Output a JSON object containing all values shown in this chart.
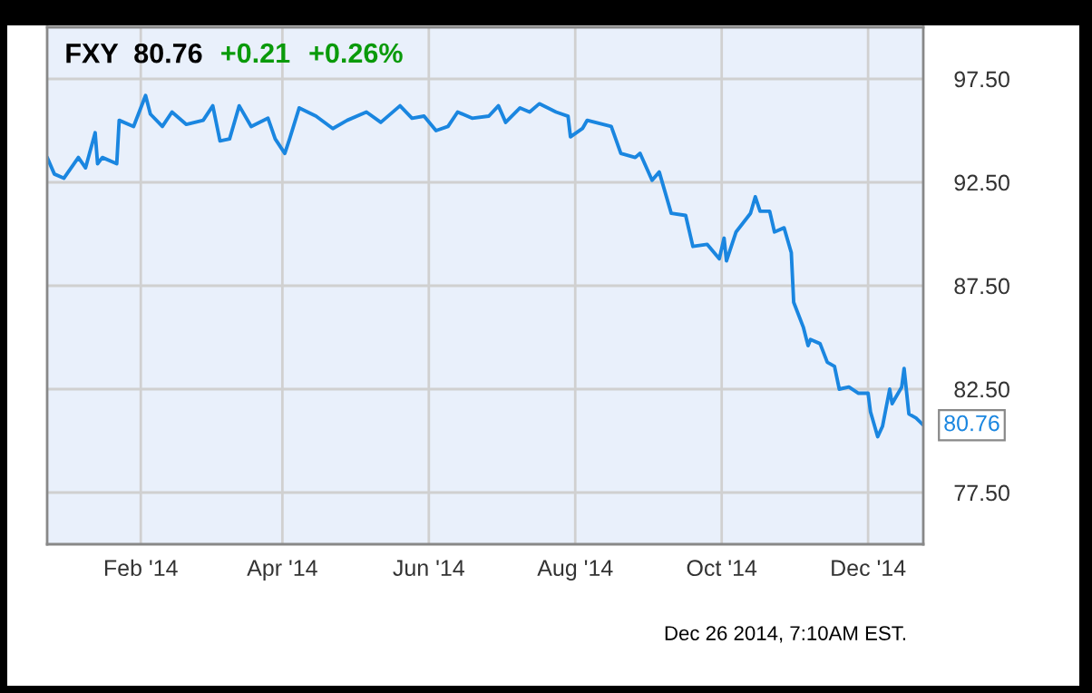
{
  "chart_data": {
    "type": "line",
    "title": "FXY  80.76",
    "annotations": [
      "+0.21",
      "+0.26%",
      "Dec 26 2014, 7:10AM EST."
    ],
    "x": [
      "2013-12-24",
      "2013-12-27",
      "2013-12-31",
      "2014-01-06",
      "2014-01-09",
      "2014-01-13",
      "2014-01-14",
      "2014-01-16",
      "2014-01-22",
      "2014-01-23",
      "2014-01-29",
      "2014-02-03",
      "2014-02-05",
      "2014-02-10",
      "2014-02-14",
      "2014-02-20",
      "2014-02-27",
      "2014-03-03",
      "2014-03-06",
      "2014-03-10",
      "2014-03-14",
      "2014-03-19",
      "2014-03-26",
      "2014-03-29",
      "2014-04-02",
      "2014-04-04",
      "2014-04-08",
      "2014-04-15",
      "2014-04-22",
      "2014-04-28",
      "2014-05-06",
      "2014-05-12",
      "2014-05-20",
      "2014-05-25",
      "2014-05-30",
      "2014-06-04",
      "2014-06-09",
      "2014-06-13",
      "2014-06-19",
      "2014-06-26",
      "2014-06-30",
      "2014-07-03",
      "2014-07-09",
      "2014-07-13",
      "2014-07-17",
      "2014-07-24",
      "2014-07-29",
      "2014-07-30",
      "2014-08-04",
      "2014-08-06",
      "2014-08-16",
      "2014-08-20",
      "2014-08-26",
      "2014-08-28",
      "2014-09-02",
      "2014-09-05",
      "2014-09-10",
      "2014-09-16",
      "2014-09-19",
      "2014-09-25",
      "2014-09-30",
      "2014-10-02",
      "2014-10-03",
      "2014-10-07",
      "2014-10-13",
      "2014-10-15",
      "2014-10-17",
      "2014-10-21",
      "2014-10-23",
      "2014-10-27",
      "2014-10-30",
      "2014-10-31",
      "2014-11-04",
      "2014-11-06",
      "2014-11-07",
      "2014-11-11",
      "2014-11-14",
      "2014-11-17",
      "2014-11-19",
      "2014-11-23",
      "2014-11-27",
      "2014-12-01",
      "2014-12-02",
      "2014-12-05",
      "2014-12-07",
      "2014-12-10",
      "2014-12-11",
      "2014-12-15",
      "2014-12-16",
      "2014-12-18",
      "2014-12-21",
      "2014-12-24"
    ],
    "series": [
      {
        "color": "#1a86e0",
        "values": [
          93.7,
          92.9,
          92.7,
          93.7,
          93.2,
          94.9,
          93.4,
          93.7,
          93.4,
          95.5,
          95.2,
          96.7,
          95.8,
          95.2,
          95.9,
          95.3,
          95.5,
          96.2,
          94.5,
          94.6,
          96.2,
          95.2,
          95.6,
          94.6,
          93.9,
          94.6,
          96.1,
          95.7,
          95.1,
          95.5,
          95.9,
          95.4,
          96.2,
          95.6,
          95.7,
          95.0,
          95.2,
          95.9,
          95.6,
          95.7,
          96.2,
          95.4,
          96.1,
          95.9,
          96.3,
          95.9,
          95.7,
          94.7,
          95.1,
          95.5,
          95.2,
          93.9,
          93.7,
          93.9,
          92.6,
          93.0,
          91.0,
          90.9,
          89.4,
          89.5,
          88.8,
          89.8,
          88.7,
          90.1,
          91.0,
          91.8,
          91.1,
          91.1,
          90.1,
          90.3,
          89.1,
          86.7,
          85.5,
          84.6,
          84.9,
          84.7,
          83.8,
          83.6,
          82.5,
          82.6,
          82.3,
          82.3,
          81.4,
          80.2,
          80.7,
          82.5,
          81.8,
          82.6,
          83.5,
          81.3,
          81.1,
          80.76
        ],
        "value_labels": [
          null,
          null,
          null,
          null,
          null,
          null,
          null,
          null,
          null,
          null,
          null,
          null,
          null,
          null,
          null,
          null,
          null,
          null,
          null,
          null,
          null,
          null,
          null,
          null,
          null,
          null,
          null,
          null,
          null,
          null,
          null,
          null,
          null,
          null,
          null,
          null,
          null,
          null,
          null,
          null,
          null,
          null,
          null,
          null,
          null,
          null,
          null,
          null,
          null,
          null,
          null,
          null,
          null,
          null,
          null,
          null,
          null,
          null,
          null,
          null,
          null,
          null,
          null,
          null,
          null,
          null,
          null,
          null,
          null,
          null,
          null,
          null,
          null,
          null,
          null,
          null,
          null,
          null,
          null,
          null,
          null,
          null,
          null,
          null,
          null,
          null,
          null,
          null,
          null,
          null,
          null,
          "80.76"
        ]
      }
    ],
    "xlim": [
      "2013-12-24",
      "2014-12-24"
    ],
    "xticks": [
      {
        "value": "2014-02-01",
        "label": "Feb '14"
      },
      {
        "value": "2014-04-01",
        "label": "Apr '14"
      },
      {
        "value": "2014-06-01",
        "label": "Jun '14"
      },
      {
        "value": "2014-08-01",
        "label": "Aug '14"
      },
      {
        "value": "2014-10-01",
        "label": "Oct '14"
      },
      {
        "value": "2014-12-01",
        "label": "Dec '14"
      }
    ],
    "ylim": [
      75,
      100
    ],
    "yticks": [
      {
        "value": 77.5,
        "label": "77.50"
      },
      {
        "value": 82.5,
        "label": "82.50"
      },
      {
        "value": 87.5,
        "label": "87.50"
      },
      {
        "value": 92.5,
        "label": "92.50"
      },
      {
        "value": 97.5,
        "label": "97.50"
      }
    ],
    "grid": true,
    "marker": "none",
    "line_style": "solid"
  }
}
